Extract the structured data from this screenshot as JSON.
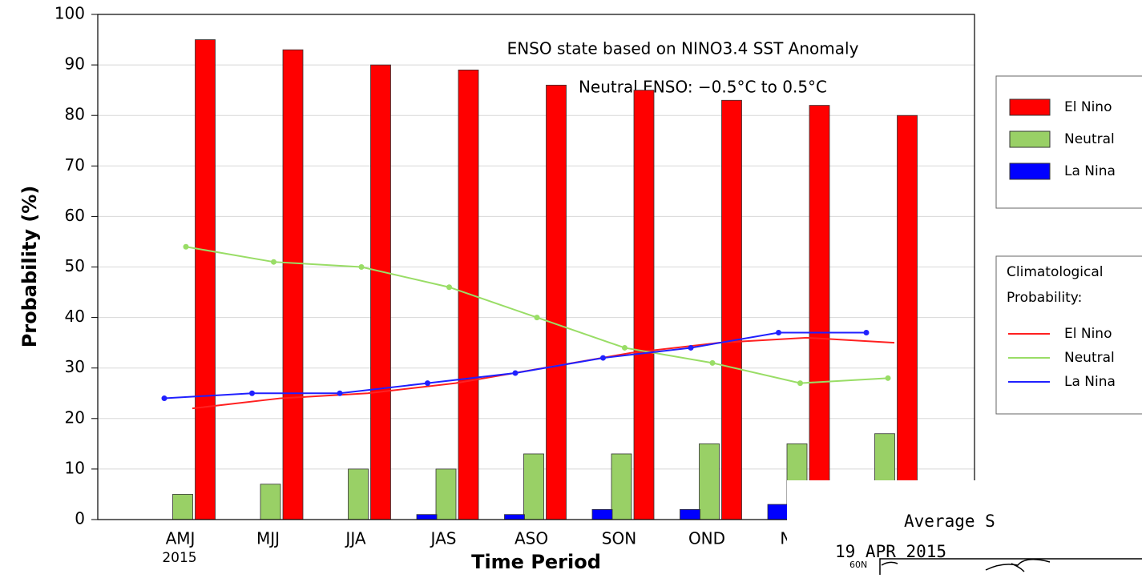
{
  "chart_data": {
    "type": "bar",
    "annotations": [
      "ENSO state based on NINO3.4 SST Anomaly",
      "Neutral ENSO: −0.5°C to 0.5°C"
    ],
    "ylabel": "Probability (%)",
    "xlabel": "Time Period",
    "categories": [
      "AMJ",
      "MJJ",
      "JJA",
      "JAS",
      "ASO",
      "SON",
      "OND",
      "NDJ",
      null
    ],
    "x_sublabel": "2015",
    "ylim": [
      0,
      100
    ],
    "yticks": [
      0,
      10,
      20,
      30,
      40,
      50,
      60,
      70,
      80,
      90,
      100
    ],
    "grid": true,
    "series": [
      {
        "name": "El Nino",
        "color": "#ff0000",
        "values": [
          95,
          93,
          90,
          89,
          86,
          85,
          83,
          82,
          80
        ]
      },
      {
        "name": "Neutral",
        "color": "#99d066",
        "values": [
          5,
          7,
          10,
          10,
          13,
          13,
          15,
          15,
          17
        ]
      },
      {
        "name": "La Nina",
        "color": "#0000ff",
        "values": [
          0,
          0,
          0,
          1,
          1,
          2,
          2,
          3,
          3
        ]
      }
    ],
    "climatology": {
      "title": "Climatological",
      "subtitle": "Probability:",
      "series": [
        {
          "name": "El Nino",
          "color": "#ff2020",
          "markers": false,
          "values": [
            22,
            24,
            25,
            27,
            30,
            33,
            35,
            36,
            35
          ]
        },
        {
          "name": "Neutral",
          "color": "#99dd66",
          "markers": true,
          "values": [
            54,
            51,
            50,
            46,
            40,
            34,
            31,
            27,
            28
          ]
        },
        {
          "name": "La Nina",
          "color": "#2020ff",
          "markers": true,
          "values": [
            24,
            25,
            25,
            27,
            29,
            32,
            34,
            37,
            37
          ]
        }
      ]
    }
  },
  "inset": {
    "title": "Average S",
    "date": "19 APR 2015",
    "lat_label": "60N"
  }
}
